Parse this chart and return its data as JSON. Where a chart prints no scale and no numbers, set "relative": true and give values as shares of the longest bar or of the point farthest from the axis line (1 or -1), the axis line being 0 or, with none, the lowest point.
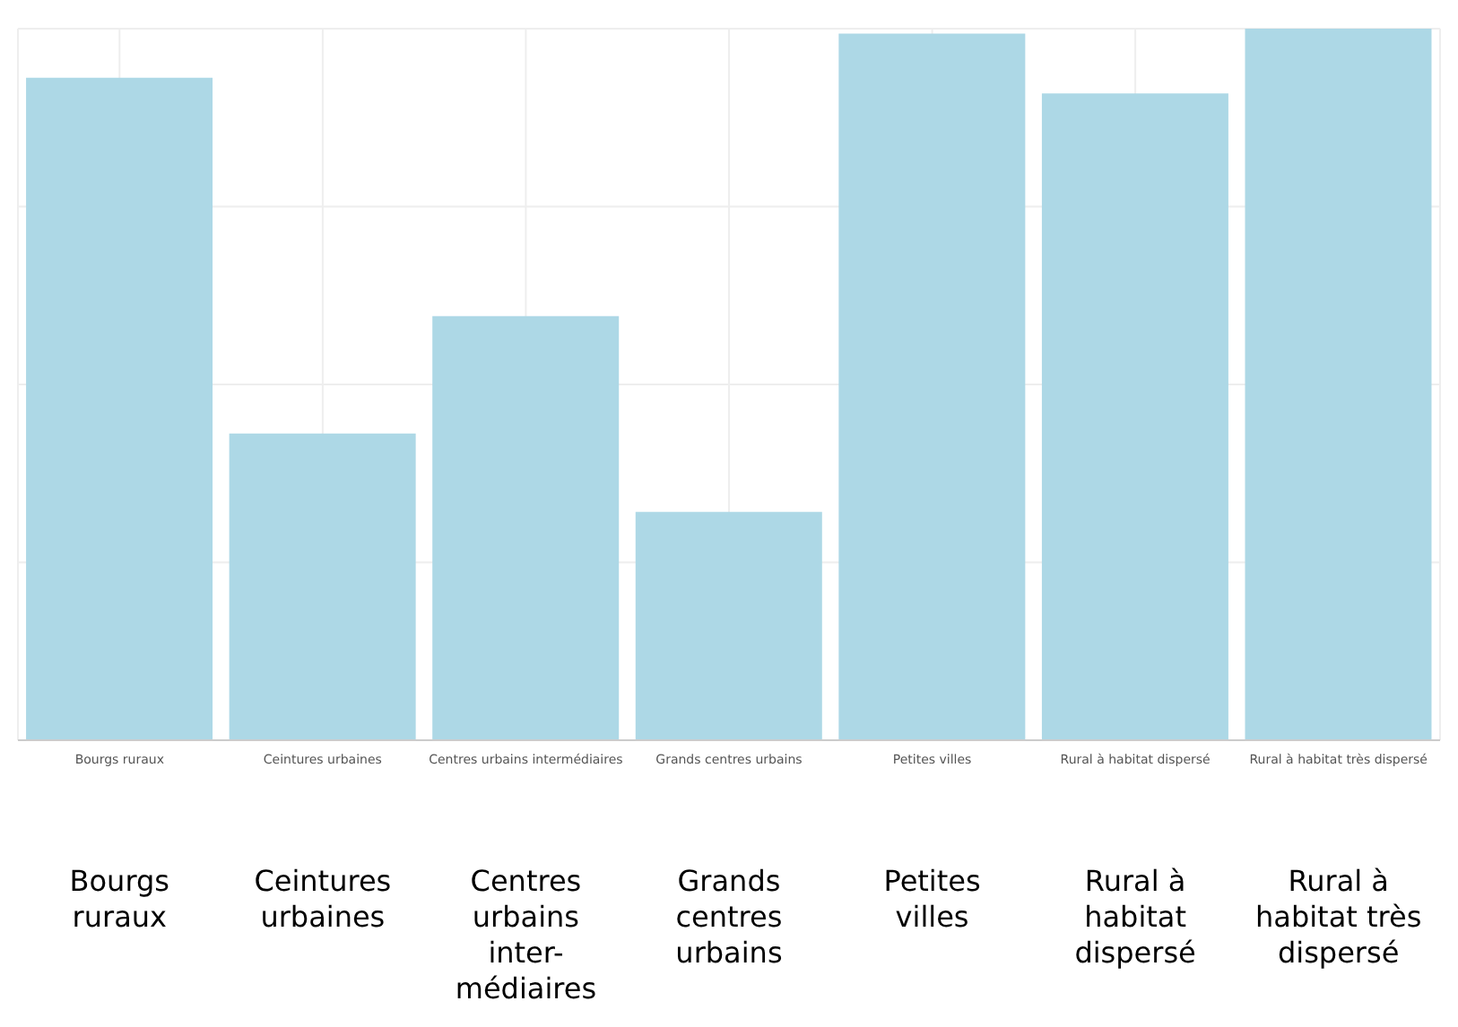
{
  "chart_data": {
    "type": "bar",
    "relative": true,
    "categories": [
      "Bourgs ruraux",
      "Ceintures urbaines",
      "Centres urbains intermédiaires",
      "Grands centres urbains",
      "Petites villes",
      "Rural à habitat dispersé",
      "Rural à habitat très dispersé"
    ],
    "values": [
      0.931,
      0.431,
      0.596,
      0.321,
      0.993,
      0.909,
      1
    ],
    "color": "#add8e6",
    "grid": true,
    "annotations": [
      "Bourgs\nruraux",
      "Ceintures\nurbaines",
      "Centres\nurbains\ninter-\nmédiaires",
      "Grands\ncentres\nurbains",
      "Petites\nvilles",
      "Rural à\nhabitat\ndispersé",
      "Rural à\nhabitat très\ndispersé"
    ]
  }
}
